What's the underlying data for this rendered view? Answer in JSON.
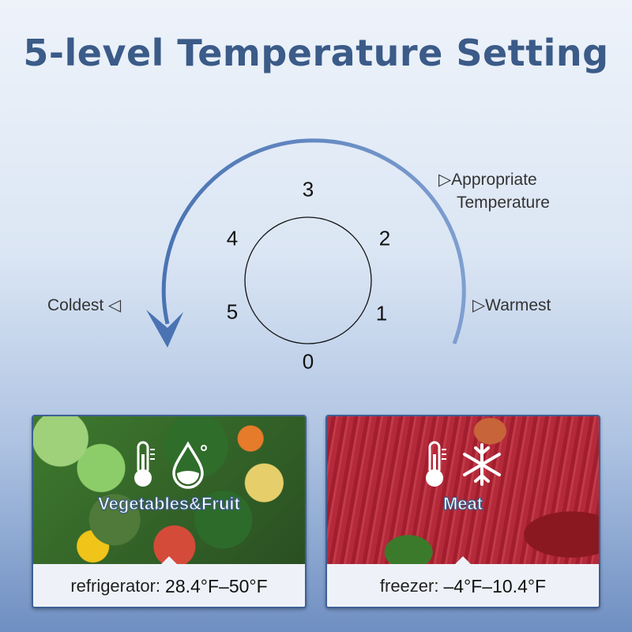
{
  "title": "5-level Temperature Setting",
  "dial": {
    "numbers": [
      "0",
      "1",
      "2",
      "3",
      "4",
      "5"
    ],
    "labels": {
      "appropriate_line1": "▷Appropriate",
      "appropriate_line2": "Temperature",
      "warmest": "▷Warmest",
      "coldest": "Coldest ◁"
    }
  },
  "cards": [
    {
      "category": "Vegetables&Fruit",
      "zone": "refrigerator:",
      "range": "28.4°F–50°F",
      "icons": [
        "thermometer-icon",
        "water-drop-icon"
      ]
    },
    {
      "category": "Meat",
      "zone": "freezer:",
      "range": "–4°F–10.4°F",
      "icons": [
        "thermometer-icon",
        "snowflake-icon"
      ]
    }
  ],
  "colors": {
    "title": "#3b5b88",
    "arc": "#4f78b6"
  }
}
